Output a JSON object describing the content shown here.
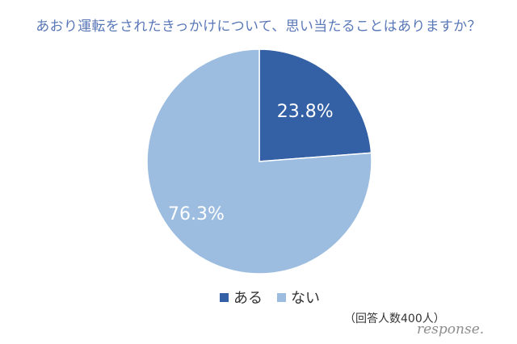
{
  "chart_data": {
    "type": "pie",
    "title": "あおり運転をされたきっかけについて、思い当たることはありますか？",
    "categories": [
      "ある",
      "ない"
    ],
    "values": [
      23.8,
      76.3
    ],
    "labels": [
      "23.8%",
      "76.3%"
    ],
    "colors": [
      "#3461a6",
      "#9dbde0"
    ],
    "label_colors": [
      "#ffffff",
      "#ffffff"
    ],
    "legend_position": "bottom"
  },
  "note": "（回答人数400人）",
  "watermark": "response."
}
